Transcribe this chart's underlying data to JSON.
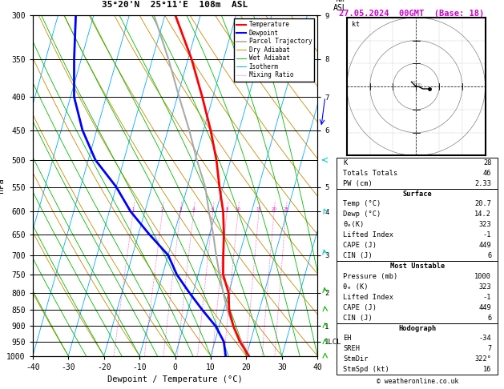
{
  "title_left": "35°20'N  25°11'E  108m  ASL",
  "title_date": "27.05.2024  00GMT  (Base: 18)",
  "xlabel": "Dewpoint / Temperature (°C)",
  "ylabel_left": "hPa",
  "pressure_levels": [
    300,
    350,
    400,
    450,
    500,
    550,
    600,
    650,
    700,
    750,
    800,
    850,
    900,
    950,
    1000
  ],
  "pressure_labels": [
    "300",
    "350",
    "400",
    "450",
    "500",
    "550",
    "600",
    "650",
    "700",
    "750",
    "800",
    "850",
    "900",
    "950",
    "1000"
  ],
  "temp_color": "#ff0000",
  "dewp_color": "#0000ff",
  "parcel_color": "#aaaaaa",
  "dry_adiabat_color": "#cc8800",
  "wet_adiabat_color": "#00bb00",
  "isotherm_color": "#00aaff",
  "mixing_ratio_color": "#ff00cc",
  "background_color": "#ffffff",
  "km_labels": {
    "300": "9",
    "350": "8",
    "400": "7",
    "450": "6",
    "550": "5",
    "600": "4",
    "700": "3",
    "800": "2",
    "900": "1",
    "950": "1LCL"
  },
  "mixing_ratio_values": [
    1,
    2,
    3,
    4,
    6,
    8,
    10,
    15,
    20,
    25
  ],
  "skew_S": 22.5,
  "T_min": -40,
  "T_max": 40,
  "P_min": 300,
  "P_max": 1000,
  "stats": {
    "K": "28",
    "Totals Totals": "46",
    "PW (cm)": "2.33",
    "Surf_Temp": "20.7",
    "Surf_Dewp": "14.2",
    "Surf_theta_e": "323",
    "Surf_LI": "-1",
    "Surf_CAPE": "449",
    "Surf_CIN": "6",
    "MU_Pressure": "1000",
    "MU_theta_e": "323",
    "MU_LI": "-1",
    "MU_CAPE": "449",
    "MU_CIN": "6",
    "EH": "-34",
    "SREH": "7",
    "StmDir": "322°",
    "StmSpd": "16"
  },
  "hodo_u": [
    -2,
    -1,
    0,
    2,
    4,
    5,
    6
  ],
  "hodo_v": [
    0,
    0,
    1,
    1,
    0,
    -1,
    -2
  ],
  "storm_u": 4.0,
  "storm_v": -1.0,
  "wind_barbs": [
    {
      "p": 300,
      "color": "#0000ff",
      "u": -15,
      "v": 35
    },
    {
      "p": 400,
      "color": "#0000ff",
      "u": -10,
      "v": 25
    },
    {
      "p": 500,
      "color": "#00cccc",
      "u": -5,
      "v": 20
    },
    {
      "p": 600,
      "color": "#00cccc",
      "u": -3,
      "v": 15
    },
    {
      "p": 700,
      "color": "#00cccc",
      "u": 0,
      "v": 10
    },
    {
      "p": 800,
      "color": "#00bb00",
      "u": 5,
      "v": 8
    },
    {
      "p": 850,
      "color": "#00bb00",
      "u": 5,
      "v": 5
    },
    {
      "p": 900,
      "color": "#00bb00",
      "u": 3,
      "v": 3
    },
    {
      "p": 950,
      "color": "#00bb00",
      "u": 2,
      "v": 2
    },
    {
      "p": 1000,
      "color": "#00bb00",
      "u": 2,
      "v": 2
    }
  ]
}
